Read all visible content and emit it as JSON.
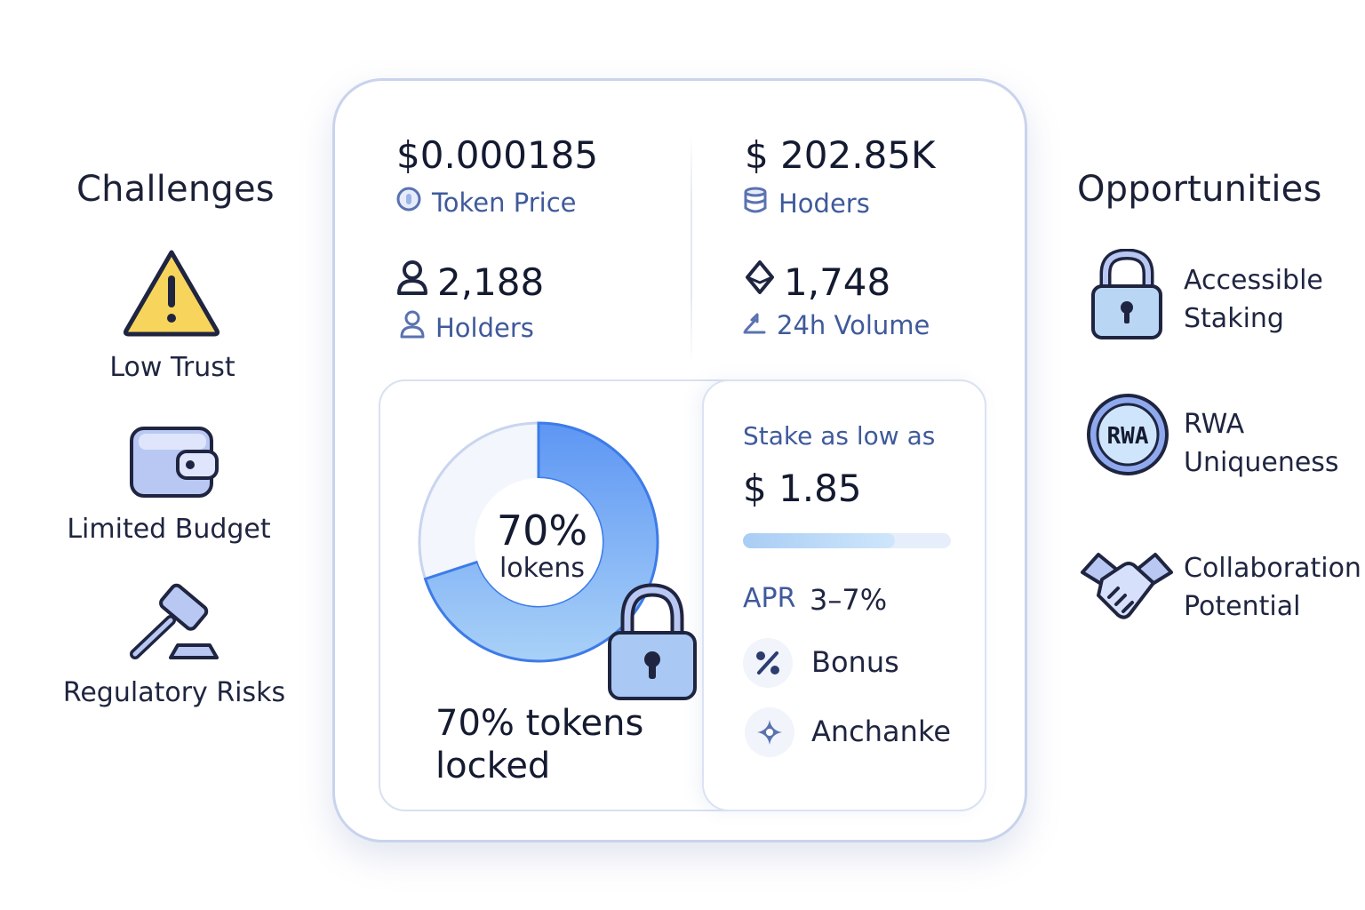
{
  "challenges": {
    "title": "Challenges",
    "items": [
      {
        "label": "Low Trust",
        "icon": "warning-icon"
      },
      {
        "label": "Limited Budget",
        "icon": "wallet-icon"
      },
      {
        "label": "Regulatory Risks",
        "icon": "gavel-icon"
      }
    ]
  },
  "opportunities": {
    "title": "Opportunities",
    "items": [
      {
        "line1": "Accessible",
        "line2": "Staking",
        "icon": "lock-icon"
      },
      {
        "line1": "RWA",
        "line2": "Uniqueness",
        "icon": "rwa-badge-icon",
        "badge": "RWA"
      },
      {
        "line1": "Collaboration",
        "line2": "Potential",
        "icon": "handshake-icon"
      }
    ]
  },
  "stats": {
    "token_price": {
      "value": "$0.000185",
      "label": "Token Price"
    },
    "market": {
      "value": "$ 202.85K",
      "label": "Hoders"
    },
    "holders": {
      "value": "2,188",
      "label": "Holders"
    },
    "volume": {
      "value": "1,748",
      "label": "24h Volume"
    }
  },
  "lock": {
    "percent_text": "70%",
    "center_label": "lokens",
    "caption_line1": "70% tokens",
    "caption_line2": "locked",
    "locked_fraction": 0.7
  },
  "staking": {
    "min_label": "Stake as low as",
    "min_value": "$ 1.85",
    "bar_fill_fraction": 0.73,
    "apr_label": "APR",
    "apr_value": "3–7%",
    "features": [
      {
        "label": "Bonus",
        "icon": "percent-icon"
      },
      {
        "label": "Anchanke",
        "icon": "sparkle-icon"
      }
    ]
  },
  "colors": {
    "accent": "#3f5a9b",
    "donut_blue": "#4f8df0",
    "warning": "#f7d55c",
    "icon_fill": "#b9c8f3"
  }
}
